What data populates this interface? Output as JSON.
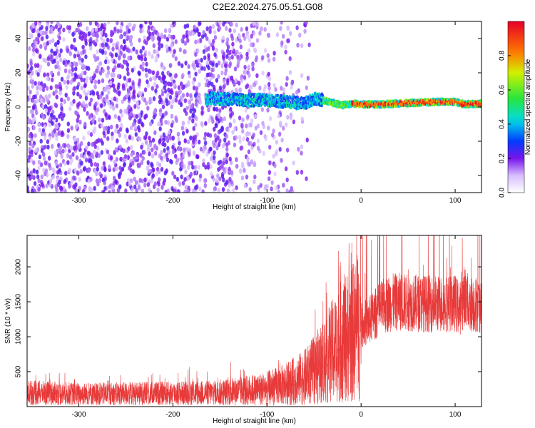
{
  "title": "C2E2.2024.275.05.51.G08",
  "chart_data": [
    {
      "type": "heatmap",
      "xlabel": "Height of straight line (km)",
      "ylabel": "Frequency (Hz)",
      "xlim": [
        -355,
        128
      ],
      "ylim": [
        -50,
        50
      ],
      "xticks": [
        -300,
        -200,
        -100,
        0,
        100
      ],
      "yticks": [
        -40,
        -20,
        0,
        20,
        40
      ],
      "colorbar": {
        "label": "Normalized spectral amplitude",
        "range": [
          0,
          1
        ],
        "ticks": [
          "0.0",
          "0.2",
          "0.4",
          "0.6",
          "0.8"
        ]
      },
      "dominant_frequency_track": {
        "x": [
          -165,
          -140,
          -120,
          -100,
          -80,
          -60,
          -50,
          -40,
          -30,
          -20,
          -10,
          0,
          20,
          40,
          60,
          80,
          100,
          110,
          128
        ],
        "y": [
          5,
          4.5,
          4,
          4,
          3,
          2,
          5,
          4,
          2.5,
          1,
          2,
          1.5,
          1.5,
          2,
          2.5,
          3,
          3,
          1.5,
          2
        ]
      },
      "noise_region": [
        -355,
        -55
      ]
    },
    {
      "type": "line",
      "xlabel": "Height of straight line (km)",
      "ylabel": "SNR (10 * v/v)",
      "xlim": [
        -355,
        128
      ],
      "ylim": [
        0,
        2450
      ],
      "xticks": [
        -300,
        -200,
        -100,
        0,
        100
      ],
      "yticks": [
        500,
        1000,
        1500,
        2000
      ],
      "color": "#e83a3a",
      "series": [
        {
          "x": [
            -355,
            -300,
            -250,
            -200,
            -150,
            -120,
            -100,
            -80,
            -60,
            -50,
            -40,
            -30,
            -20,
            -10,
            0,
            10,
            20,
            30,
            40,
            60,
            80,
            100,
            105,
            110,
            115,
            120,
            128
          ],
          "y": [
            200,
            180,
            185,
            190,
            200,
            230,
            260,
            320,
            420,
            520,
            650,
            800,
            950,
            1050,
            1150,
            1250,
            1400,
            1480,
            1500,
            1480,
            1470,
            1480,
            1400,
            1600,
            1450,
            1480,
            1450
          ]
        }
      ]
    }
  ]
}
